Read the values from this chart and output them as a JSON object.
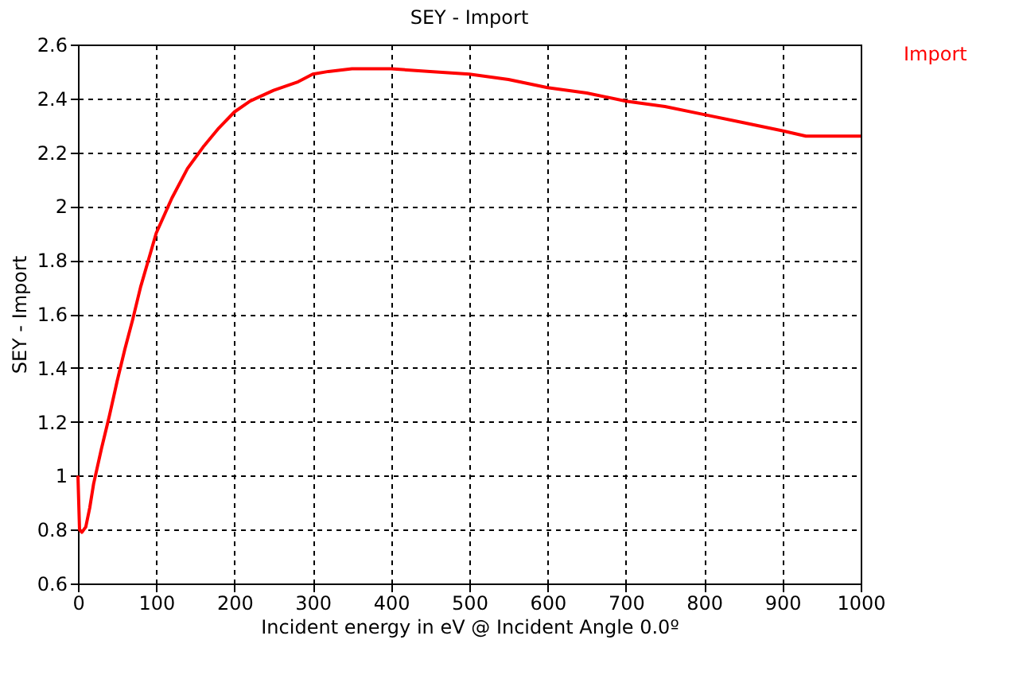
{
  "chart_data": {
    "type": "line",
    "title": "SEY - Import",
    "xlabel": "Incident energy in eV  @  Incident Angle 0.0º",
    "ylabel": "SEY - Import",
    "x": [
      0,
      2,
      5,
      10,
      15,
      20,
      30,
      40,
      50,
      60,
      70,
      80,
      90,
      100,
      120,
      140,
      160,
      180,
      200,
      220,
      250,
      280,
      300,
      320,
      350,
      400,
      450,
      500,
      550,
      600,
      650,
      700,
      750,
      800,
      850,
      900,
      930,
      1000
    ],
    "series": [
      {
        "name": "Import",
        "color": "#ff0000",
        "values": [
          1.0,
          0.8,
          0.79,
          0.81,
          0.88,
          0.97,
          1.1,
          1.22,
          1.35,
          1.47,
          1.58,
          1.7,
          1.8,
          1.9,
          2.03,
          2.14,
          2.22,
          2.29,
          2.35,
          2.39,
          2.43,
          2.46,
          2.49,
          2.5,
          2.51,
          2.51,
          2.5,
          2.49,
          2.47,
          2.44,
          2.42,
          2.39,
          2.37,
          2.34,
          2.31,
          2.28,
          2.26,
          2.26
        ]
      }
    ],
    "xlim": [
      0,
      1000
    ],
    "xticks": [
      0,
      100,
      200,
      300,
      400,
      500,
      600,
      700,
      800,
      900,
      1000
    ],
    "ylim": [
      0.6,
      2.6
    ],
    "yticks": [
      0.6,
      0.8,
      1,
      1.2,
      1.4,
      1.6,
      1.8,
      2,
      2.2,
      2.4,
      2.6
    ],
    "grid": true,
    "legend": "top right",
    "marker": "none",
    "line_style": "solid"
  }
}
